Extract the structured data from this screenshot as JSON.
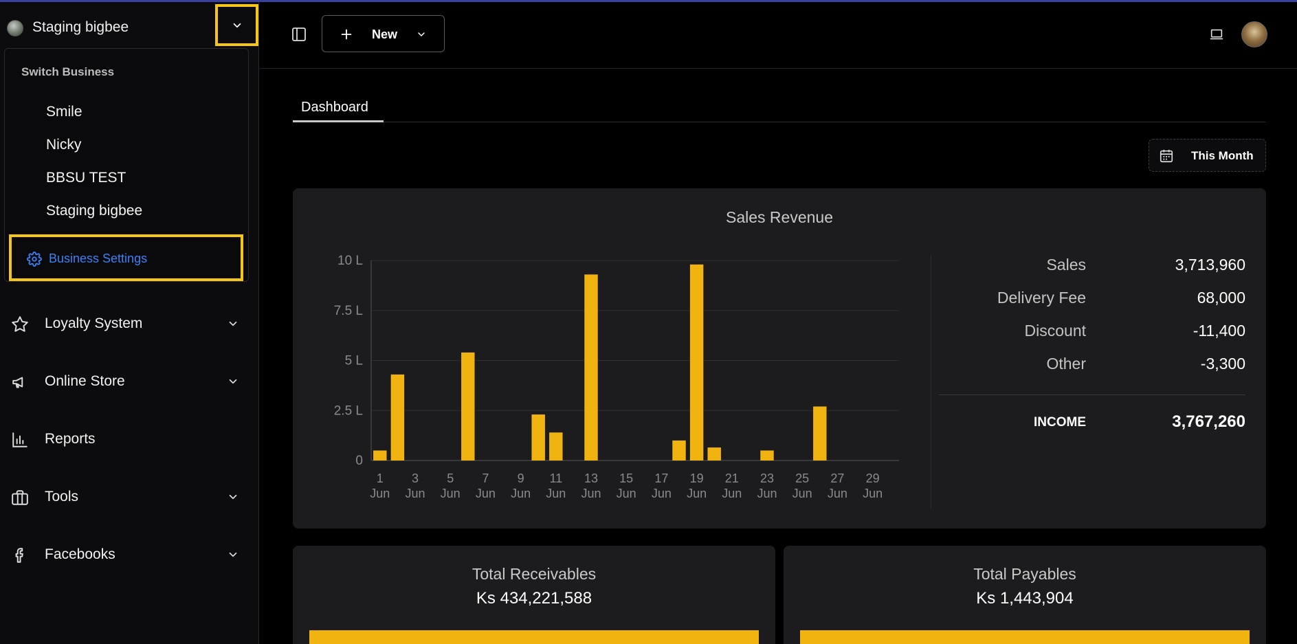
{
  "business": {
    "current_name": "Staging bigbee",
    "switch_title": "Switch Business",
    "options": [
      "Smile",
      "Nicky",
      "BBSU TEST",
      "Staging bigbee"
    ],
    "settings_label": "Business Settings"
  },
  "sidebar": {
    "items": [
      {
        "label": "Loyalty System",
        "icon": "star-icon",
        "has_submenu": true
      },
      {
        "label": "Online Store",
        "icon": "megaphone-icon",
        "has_submenu": true
      },
      {
        "label": "Reports",
        "icon": "bar-chart-icon",
        "has_submenu": false
      },
      {
        "label": "Tools",
        "icon": "briefcase-icon",
        "has_submenu": true
      },
      {
        "label": "Facebooks",
        "icon": "facebook-icon",
        "has_submenu": true
      }
    ]
  },
  "topbar": {
    "new_label": "New"
  },
  "tabs": [
    {
      "label": "Dashboard",
      "active": true
    }
  ],
  "period": {
    "label": "This Month"
  },
  "sales_card": {
    "title": "Sales Revenue",
    "summary": [
      {
        "label": "Sales",
        "value": "3,713,960"
      },
      {
        "label": "Delivery Fee",
        "value": "68,000"
      },
      {
        "label": "Discount",
        "value": "-11,400"
      },
      {
        "label": "Other",
        "value": "-3,300"
      }
    ],
    "income": {
      "label": "INCOME",
      "value": "3,767,260"
    }
  },
  "chart_data": {
    "type": "bar",
    "categories": [
      "1 Jun",
      "2 Jun",
      "3 Jun",
      "4 Jun",
      "5 Jun",
      "6 Jun",
      "7 Jun",
      "8 Jun",
      "9 Jun",
      "10 Jun",
      "11 Jun",
      "12 Jun",
      "13 Jun",
      "14 Jun",
      "15 Jun",
      "16 Jun",
      "17 Jun",
      "18 Jun",
      "19 Jun",
      "20 Jun",
      "21 Jun",
      "22 Jun",
      "23 Jun",
      "24 Jun",
      "25 Jun",
      "26 Jun",
      "27 Jun",
      "28 Jun",
      "29 Jun",
      "30 Jun"
    ],
    "tick_labels": [
      {
        "day": "1",
        "month": "Jun"
      },
      {
        "day": "3",
        "month": "Jun"
      },
      {
        "day": "5",
        "month": "Jun"
      },
      {
        "day": "7",
        "month": "Jun"
      },
      {
        "day": "9",
        "month": "Jun"
      },
      {
        "day": "11",
        "month": "Jun"
      },
      {
        "day": "13",
        "month": "Jun"
      },
      {
        "day": "15",
        "month": "Jun"
      },
      {
        "day": "17",
        "month": "Jun"
      },
      {
        "day": "19",
        "month": "Jun"
      },
      {
        "day": "21",
        "month": "Jun"
      },
      {
        "day": "23",
        "month": "Jun"
      },
      {
        "day": "25",
        "month": "Jun"
      },
      {
        "day": "27",
        "month": "Jun"
      },
      {
        "day": "29",
        "month": "Jun"
      }
    ],
    "values": [
      0.5,
      4.3,
      0,
      0,
      0,
      5.4,
      0,
      0,
      0,
      2.3,
      1.4,
      0,
      9.3,
      0,
      0,
      0,
      0,
      1.0,
      9.8,
      0.65,
      0,
      0,
      0.5,
      0,
      0,
      2.7,
      0,
      0,
      0,
      0
    ],
    "y_ticks": [
      "0",
      "2.5 L",
      "5 L",
      "7.5 L",
      "10 L"
    ],
    "ylim": [
      0,
      10
    ],
    "y_unit": "L",
    "grid": true,
    "bar_color": "#f0b30f"
  },
  "receivables": {
    "title": "Total Receivables",
    "value": "Ks 434,221,588",
    "fill": 1.0
  },
  "payables": {
    "title": "Total Payables",
    "value": "Ks 1,443,904",
    "fill": 1.0
  },
  "colors": {
    "accent": "#f5c518",
    "link": "#3b82f6",
    "bar": "#f0b30f"
  }
}
